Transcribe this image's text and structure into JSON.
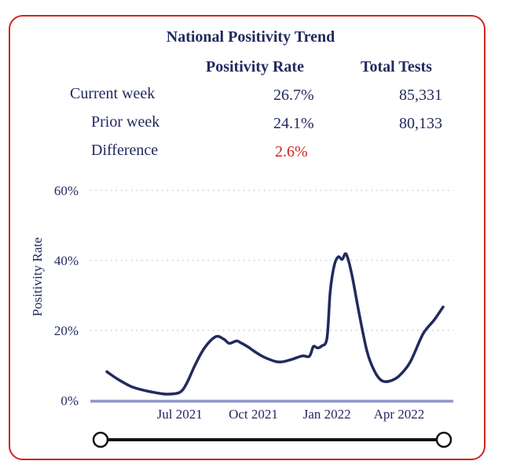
{
  "summary": {
    "title": "National Positivity Trend",
    "col_rate": "Positivity Rate",
    "col_tests": "Total Tests",
    "rows": [
      {
        "label": "Current week",
        "rate": "26.7%",
        "tests": "85,331"
      },
      {
        "label": "Prior week",
        "rate": "24.1%",
        "tests": "80,133"
      },
      {
        "label": "Difference",
        "rate": "2.6%",
        "tests": ""
      }
    ]
  },
  "colors": {
    "border": "#d1261f",
    "text": "#222a5e",
    "line": "#222a5e",
    "baseline": "#8e96c8",
    "grid": "#c8c8c8",
    "difference": "#d1261f"
  },
  "chart_data": {
    "type": "line",
    "title": "National Positivity Trend",
    "ylabel": "Positivity Rate",
    "xlabel": "",
    "ylim": [
      0,
      60
    ],
    "yticks": [
      0,
      20,
      40,
      60
    ],
    "ytick_labels": [
      "0%",
      "20%",
      "40%",
      "60%"
    ],
    "xticks": [
      "2021-07-01",
      "2021-10-01",
      "2022-01-01",
      "2022-04-01"
    ],
    "xtick_labels": [
      "Jul 2021",
      "Oct 2021",
      "Jan 2022",
      "Apr 2022"
    ],
    "grid": true,
    "series": [
      {
        "name": "Positivity Rate",
        "x": [
          "2021-04-01",
          "2021-04-15",
          "2021-05-01",
          "2021-05-15",
          "2021-06-01",
          "2021-06-15",
          "2021-07-01",
          "2021-07-10",
          "2021-07-20",
          "2021-08-01",
          "2021-08-15",
          "2021-08-25",
          "2021-09-01",
          "2021-09-10",
          "2021-09-15",
          "2021-09-25",
          "2021-10-01",
          "2021-10-15",
          "2021-11-01",
          "2021-11-15",
          "2021-12-01",
          "2021-12-10",
          "2021-12-15",
          "2021-12-20",
          "2021-12-25",
          "2022-01-01",
          "2022-01-05",
          "2022-01-10",
          "2022-01-15",
          "2022-01-20",
          "2022-01-25",
          "2022-02-01",
          "2022-02-10",
          "2022-02-20",
          "2022-03-01",
          "2022-03-10",
          "2022-03-20",
          "2022-04-01",
          "2022-04-15",
          "2022-05-01",
          "2022-05-15",
          "2022-05-26"
        ],
        "values": [
          8.2,
          6,
          4,
          3,
          2.2,
          1.8,
          2.3,
          5,
          10,
          15,
          18.2,
          17.5,
          16.3,
          17,
          16.5,
          15.2,
          14.2,
          12.3,
          11,
          11.5,
          12.7,
          12.6,
          15.4,
          15,
          15.5,
          17.8,
          31,
          38.5,
          41,
          40.3,
          41.8,
          36,
          25,
          14,
          8.5,
          5.7,
          5.5,
          7,
          11,
          19,
          23,
          26.7
        ]
      }
    ]
  }
}
